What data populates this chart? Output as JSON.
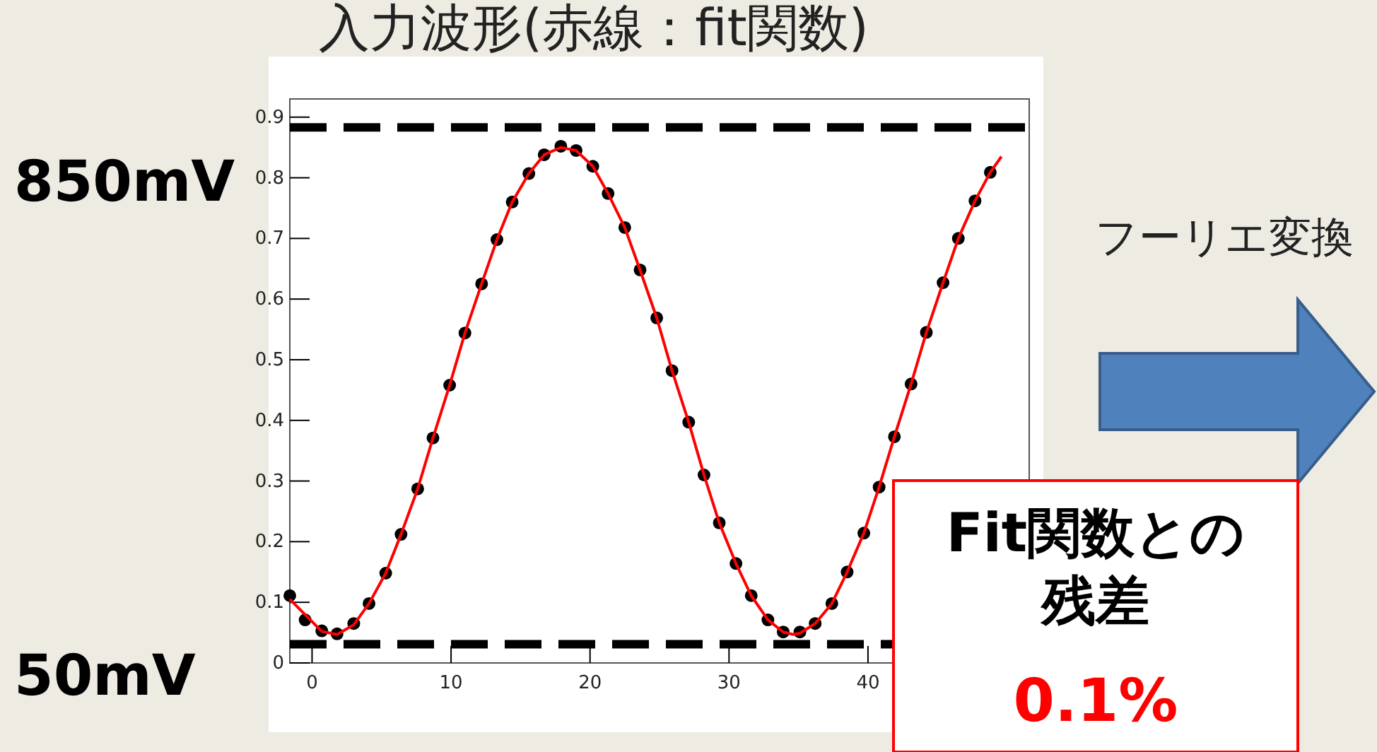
{
  "chart_data": {
    "type": "scatter",
    "title": "入力波形(赤線：fit関数)",
    "series": [
      {
        "color": "#000000",
        "marker": "circle",
        "x": [
          -1.6,
          -0.5,
          0.7,
          1.8,
          3.0,
          4.1,
          5.3,
          6.4,
          7.6,
          8.7,
          9.9,
          11.0,
          12.2,
          13.3,
          14.4,
          15.6,
          16.7,
          17.9,
          19.0,
          20.2,
          21.3,
          22.5,
          23.6,
          24.8,
          25.9,
          27.1,
          28.2,
          29.3,
          30.5,
          31.6,
          32.8,
          33.9,
          35.1,
          36.2,
          37.4,
          38.5,
          39.7,
          40.8,
          41.9,
          43.1,
          44.2,
          45.4,
          46.5,
          47.7,
          48.8
        ],
        "values": [
          0.111,
          0.071,
          0.053,
          0.048,
          0.065,
          0.098,
          0.148,
          0.212,
          0.287,
          0.371,
          0.458,
          0.544,
          0.625,
          0.698,
          0.76,
          0.807,
          0.838,
          0.852,
          0.845,
          0.819,
          0.774,
          0.718,
          0.648,
          0.569,
          0.482,
          0.397,
          0.31,
          0.231,
          0.164,
          0.111,
          0.071,
          0.051,
          0.051,
          0.065,
          0.098,
          0.15,
          0.214,
          0.29,
          0.373,
          0.46,
          0.545,
          0.627,
          0.7,
          0.762,
          0.809
        ]
      },
      {
        "type": "line",
        "color": "#ff0000",
        "x": [
          -1.6,
          0.7,
          1.8,
          3.0,
          4.1,
          5.3,
          6.4,
          7.6,
          8.7,
          9.9,
          11.0,
          12.2,
          13.3,
          14.4,
          15.6,
          16.7,
          17.9,
          19.0,
          20.2,
          21.3,
          22.5,
          23.6,
          24.8,
          25.9,
          27.1,
          28.2,
          29.3,
          30.5,
          31.6,
          32.8,
          33.9,
          34.6,
          35.1,
          36.2,
          37.4,
          38.5,
          39.7,
          40.8,
          41.9,
          43.1,
          44.2,
          45.4,
          46.5,
          47.7,
          48.8,
          49.6
        ],
        "values": [
          0.105,
          0.052,
          0.047,
          0.063,
          0.098,
          0.148,
          0.212,
          0.287,
          0.371,
          0.458,
          0.544,
          0.625,
          0.698,
          0.76,
          0.807,
          0.838,
          0.85,
          0.845,
          0.819,
          0.774,
          0.718,
          0.648,
          0.569,
          0.482,
          0.397,
          0.31,
          0.231,
          0.164,
          0.111,
          0.071,
          0.051,
          0.047,
          0.049,
          0.065,
          0.098,
          0.15,
          0.214,
          0.29,
          0.373,
          0.46,
          0.545,
          0.627,
          0.7,
          0.762,
          0.809,
          0.835
        ]
      }
    ],
    "xlim": [
      -1.6,
      51.6
    ],
    "xticks": [
      0,
      10,
      20,
      30,
      40
    ],
    "ylim": [
      0,
      0.93
    ],
    "yticks": [
      0,
      0.1,
      0.2,
      0.3,
      0.4,
      0.5,
      0.6,
      0.7,
      0.8,
      0.9
    ],
    "ref_lines": [
      {
        "axis": "y",
        "value": 0.883,
        "label": "850mV",
        "color": "#000000",
        "line_style": "dashed"
      },
      {
        "axis": "y",
        "value": 0.031,
        "label": "50mV",
        "color": "#000000",
        "line_style": "dashed"
      }
    ],
    "annotations": [
      "フーリエ変換",
      "Fit関数との残差",
      "0.1%"
    ]
  }
}
